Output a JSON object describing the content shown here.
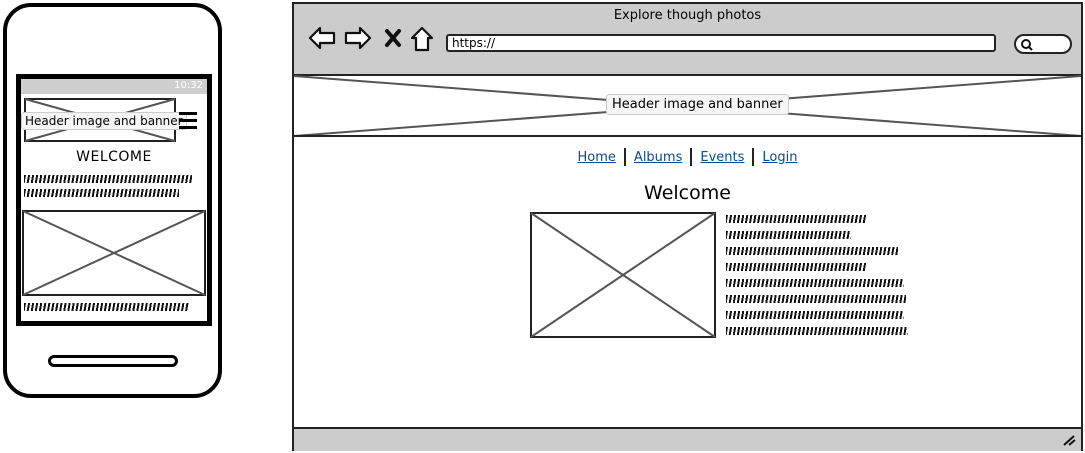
{
  "mobile": {
    "status_time": "10:32",
    "banner_label": "Header image and banner",
    "welcome": "WELCOME"
  },
  "desktop": {
    "window_title": "Explore though photos",
    "url": "https://",
    "banner_label": "Header image and banner",
    "nav": [
      "Home",
      "Albums",
      "Events",
      "Login"
    ],
    "welcome": "Welcome"
  }
}
